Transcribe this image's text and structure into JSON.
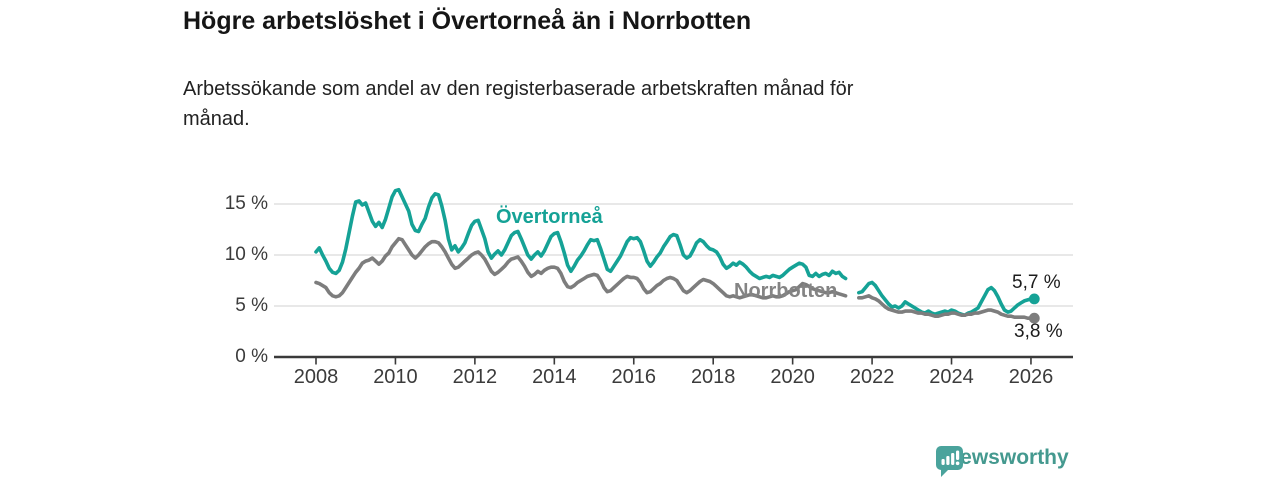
{
  "chart": {
    "title": "Högre arbetslöshet i Övertorneå än i Norrbotten",
    "subtitle_line1": "Arbetssökande som andel av den registerbaserade arbetskraften månad för",
    "subtitle_line2": "månad."
  },
  "footer": {
    "brand": "Newsworthy",
    "brand_color": "#44998F",
    "logo_mark_color": "#4AA39C",
    "logo_icon": "bar-chart-speech-bubble"
  },
  "chart_data": {
    "type": "line",
    "title": "Högre arbetslöshet i Övertorneå än i Norrbotten",
    "subtitle": "Arbetssökande som andel av den registerbaserade arbetskraften månad för månad.",
    "unit": "percent of registered labour force",
    "x_start_year": 2008,
    "step_months": 1,
    "x_range": [
      2008,
      2026.17
    ],
    "ylim": [
      0,
      17.5
    ],
    "grid": "horizontal",
    "axis_color": "#3a3a3a",
    "grid_color": "#d9d9d9",
    "yticks": [
      {
        "v": 0,
        "label": "0 %"
      },
      {
        "v": 5,
        "label": "5 %"
      },
      {
        "v": 10,
        "label": "10 %"
      },
      {
        "v": 15,
        "label": "15 %"
      }
    ],
    "xticks": [
      {
        "v": 2008,
        "label": "2008"
      },
      {
        "v": 2010,
        "label": "2010"
      },
      {
        "v": 2012,
        "label": "2012"
      },
      {
        "v": 2014,
        "label": "2014"
      },
      {
        "v": 2016,
        "label": "2016"
      },
      {
        "v": 2018,
        "label": "2018"
      },
      {
        "v": 2020,
        "label": "2020"
      },
      {
        "v": 2022,
        "label": "2022"
      },
      {
        "v": 2024,
        "label": "2024"
      },
      {
        "v": 2026,
        "label": "2026"
      }
    ],
    "series": [
      {
        "name": "Övertorneå",
        "color": "#15A296",
        "end_label": "5,7 %",
        "end_value": 5.7,
        "values": [
          10.3,
          10.7,
          10.0,
          9.4,
          8.7,
          8.3,
          8.2,
          8.5,
          9.3,
          10.6,
          12.2,
          13.8,
          15.2,
          15.3,
          14.9,
          15.1,
          14.2,
          13.3,
          12.8,
          13.2,
          12.7,
          13.5,
          14.6,
          15.7,
          16.3,
          16.4,
          15.7,
          15.0,
          14.3,
          13.0,
          12.4,
          12.3,
          13.0,
          13.6,
          14.7,
          15.6,
          16.0,
          15.9,
          14.8,
          13.4,
          11.6,
          10.5,
          10.9,
          10.3,
          10.7,
          11.2,
          12.1,
          12.9,
          13.3,
          13.4,
          12.5,
          11.6,
          10.3,
          9.7,
          10.1,
          10.4,
          10.0,
          10.5,
          11.2,
          11.9,
          12.2,
          12.3,
          11.6,
          10.8,
          10.0,
          9.6,
          10.0,
          10.3,
          9.9,
          10.4,
          11.1,
          11.8,
          12.1,
          12.2,
          11.3,
          10.2,
          9.0,
          8.4,
          8.9,
          9.5,
          9.9,
          10.4,
          11.0,
          11.5,
          11.4,
          11.5,
          10.6,
          9.6,
          8.6,
          8.4,
          8.9,
          9.4,
          9.9,
          10.6,
          11.3,
          11.7,
          11.6,
          11.7,
          11.3,
          10.4,
          9.4,
          8.9,
          9.3,
          9.8,
          10.2,
          10.8,
          11.3,
          11.8,
          12.0,
          11.9,
          11.0,
          10.0,
          9.7,
          9.9,
          10.5,
          11.2,
          11.5,
          11.3,
          10.9,
          10.6,
          10.5,
          10.3,
          9.8,
          9.1,
          8.7,
          8.9,
          9.2,
          9.0,
          9.3,
          9.1,
          8.8,
          8.4,
          8.1,
          7.9,
          7.7,
          7.8,
          7.9,
          7.8,
          8.0,
          7.9,
          7.8,
          8.0,
          8.3,
          8.6,
          8.8,
          9.0,
          9.2,
          9.1,
          8.8,
          8.0,
          7.9,
          8.2,
          7.9,
          8.1,
          8.2,
          8.0,
          8.4,
          8.2,
          8.3,
          7.9,
          7.7,
          null,
          null,
          null,
          6.3,
          6.4,
          6.8,
          7.2,
          7.3,
          7.0,
          6.5,
          6.0,
          5.6,
          5.2,
          4.9,
          5.0,
          4.8,
          5.0,
          5.4,
          5.2,
          5.0,
          4.8,
          4.6,
          4.4,
          4.3,
          4.5,
          4.3,
          4.2,
          4.3,
          4.4,
          4.5,
          4.4,
          4.6,
          4.5,
          4.3,
          4.2,
          4.1,
          4.3,
          4.4,
          4.6,
          4.8,
          5.4,
          6.0,
          6.6,
          6.8,
          6.5,
          5.9,
          5.2,
          4.6,
          4.4,
          4.5,
          4.8,
          5.1,
          5.3,
          5.5,
          5.6,
          5.7,
          5.7
        ]
      },
      {
        "name": "Norrbotten",
        "color": "#7D7D7D",
        "end_label": "3,8 %",
        "end_value": 3.8,
        "values": [
          7.3,
          7.2,
          7.0,
          6.8,
          6.3,
          6.0,
          5.9,
          6.0,
          6.3,
          6.8,
          7.3,
          7.8,
          8.3,
          8.7,
          9.2,
          9.4,
          9.5,
          9.7,
          9.4,
          9.1,
          9.4,
          9.9,
          10.2,
          10.8,
          11.2,
          11.6,
          11.5,
          11.0,
          10.5,
          10.0,
          9.7,
          10.0,
          10.4,
          10.8,
          11.1,
          11.3,
          11.3,
          11.2,
          10.8,
          10.3,
          9.7,
          9.1,
          8.7,
          8.8,
          9.1,
          9.4,
          9.7,
          10.0,
          10.2,
          10.3,
          10.0,
          9.6,
          9.0,
          8.4,
          8.1,
          8.3,
          8.6,
          8.9,
          9.3,
          9.6,
          9.7,
          9.8,
          9.4,
          8.9,
          8.3,
          7.9,
          8.1,
          8.4,
          8.2,
          8.5,
          8.7,
          8.8,
          8.8,
          8.7,
          8.2,
          7.4,
          6.9,
          6.8,
          7.0,
          7.3,
          7.5,
          7.7,
          7.9,
          8.0,
          8.1,
          8.0,
          7.5,
          6.8,
          6.4,
          6.5,
          6.8,
          7.1,
          7.4,
          7.7,
          7.9,
          7.8,
          7.8,
          7.7,
          7.3,
          6.7,
          6.3,
          6.4,
          6.7,
          7.0,
          7.2,
          7.5,
          7.7,
          7.8,
          7.7,
          7.5,
          7.0,
          6.5,
          6.3,
          6.5,
          6.8,
          7.1,
          7.4,
          7.6,
          7.5,
          7.4,
          7.2,
          6.9,
          6.6,
          6.3,
          6.0,
          5.9,
          6.0,
          5.9,
          5.8,
          5.9,
          6.0,
          6.1,
          6.1,
          6.0,
          5.9,
          5.8,
          5.8,
          5.9,
          6.0,
          5.9,
          5.9,
          6.0,
          6.2,
          6.4,
          6.5,
          6.6,
          6.9,
          7.2,
          7.1,
          6.9,
          6.7,
          6.6,
          6.5,
          6.4,
          6.3,
          6.3,
          6.4,
          6.3,
          6.2,
          6.1,
          6.0,
          null,
          null,
          null,
          5.8,
          5.8,
          5.9,
          6.0,
          5.8,
          5.7,
          5.5,
          5.2,
          4.9,
          4.7,
          4.6,
          4.5,
          4.4,
          4.4,
          4.5,
          4.5,
          4.5,
          4.4,
          4.3,
          4.3,
          4.2,
          4.2,
          4.1,
          4.0,
          4.0,
          4.1,
          4.2,
          4.2,
          4.3,
          4.3,
          4.2,
          4.1,
          4.1,
          4.2,
          4.2,
          4.3,
          4.3,
          4.4,
          4.5,
          4.6,
          4.6,
          4.5,
          4.4,
          4.2,
          4.1,
          4.0,
          4.0,
          3.9,
          3.9,
          3.9,
          3.9,
          3.8,
          3.8,
          3.8
        ]
      }
    ],
    "series_labels_on_chart": [
      "Övertorneå",
      "Norrbotten"
    ],
    "legend_position": "inline-labels"
  }
}
